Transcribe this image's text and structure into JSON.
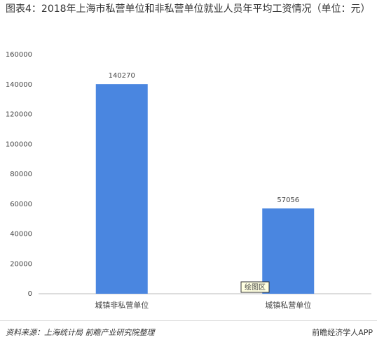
{
  "chart_data": {
    "type": "bar",
    "title": "图表4：2018年上海市私营单位和非私营单位就业人员年平均工资情况（单位：元）",
    "categories": [
      "城镇非私营单位",
      "城镇私营单位"
    ],
    "values": [
      140270,
      57056
    ],
    "color": "#4a86e0",
    "ylim": [
      0,
      160000
    ],
    "yticks": [
      0,
      20000,
      40000,
      60000,
      80000,
      100000,
      120000,
      140000,
      160000
    ],
    "plot_area_tooltip": "绘图区"
  },
  "source": "资料来源：上海统计局 前瞻产业研究院整理",
  "app_credit": "前瞻经济学人APP"
}
